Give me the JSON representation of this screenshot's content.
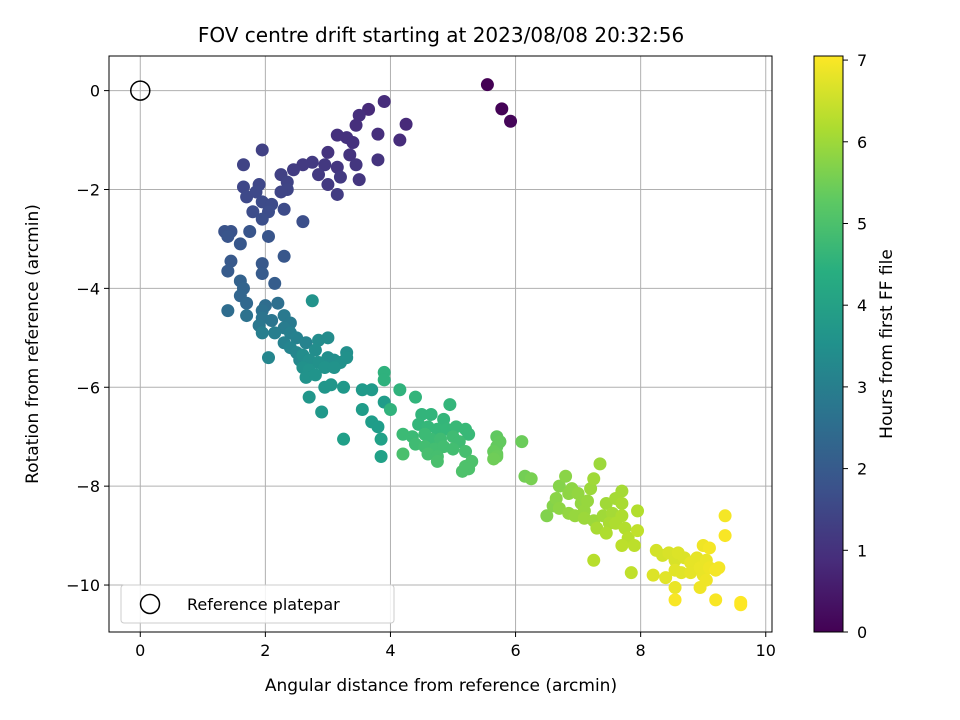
{
  "chart_data": {
    "type": "scatter",
    "title": "FOV centre drift starting at 2023/08/08 20:32:56",
    "xlabel": "Angular distance from reference (arcmin)",
    "ylabel": "Rotation from reference (arcmin)",
    "xlim": [
      -0.5,
      10.1
    ],
    "ylim": [
      -10.95,
      0.7
    ],
    "xticks": [
      "0",
      "2",
      "4",
      "6",
      "8",
      "10"
    ],
    "yticks": [
      "0",
      "−2",
      "−4",
      "−6",
      "−8",
      "−10"
    ],
    "grid": true,
    "legend": {
      "placement": "lower-left",
      "entries": [
        "Reference platepar"
      ]
    },
    "reference_point": {
      "x": 0,
      "y": 0,
      "label": "Reference platepar"
    },
    "colorbar": {
      "label": "Hours from first FF file",
      "range": [
        0,
        7.05
      ],
      "ticks": [
        "0",
        "1",
        "2",
        "3",
        "4",
        "5",
        "6",
        "7"
      ],
      "colormap": "viridis"
    },
    "points": [
      [
        5.55,
        0.12,
        0.0
      ],
      [
        5.78,
        -0.37,
        0.05
      ],
      [
        5.92,
        -0.62,
        0.1
      ],
      [
        3.9,
        -0.22,
        0.9
      ],
      [
        3.65,
        -0.38,
        0.85
      ],
      [
        3.5,
        -0.5,
        0.95
      ],
      [
        3.45,
        -0.7,
        0.95
      ],
      [
        4.25,
        -0.68,
        0.85
      ],
      [
        4.15,
        -1.0,
        0.9
      ],
      [
        3.8,
        -0.88,
        0.95
      ],
      [
        3.3,
        -0.95,
        1.0
      ],
      [
        3.15,
        -0.9,
        1.0
      ],
      [
        3.4,
        -1.05,
        1.0
      ],
      [
        3.0,
        -1.25,
        1.05
      ],
      [
        3.35,
        -1.3,
        1.05
      ],
      [
        3.45,
        -1.5,
        1.1
      ],
      [
        3.8,
        -1.4,
        1.05
      ],
      [
        3.5,
        -1.8,
        1.1
      ],
      [
        3.15,
        -1.55,
        1.1
      ],
      [
        2.95,
        -1.5,
        1.15
      ],
      [
        2.75,
        -1.45,
        1.2
      ],
      [
        2.6,
        -1.5,
        1.2
      ],
      [
        2.45,
        -1.6,
        1.25
      ],
      [
        2.85,
        -1.7,
        1.2
      ],
      [
        3.2,
        -1.75,
        1.2
      ],
      [
        3.0,
        -1.9,
        1.2
      ],
      [
        3.15,
        -2.1,
        1.25
      ],
      [
        1.95,
        -1.2,
        1.35
      ],
      [
        1.65,
        -1.5,
        1.4
      ],
      [
        2.25,
        -1.7,
        1.35
      ],
      [
        2.35,
        -1.85,
        1.4
      ],
      [
        2.35,
        -2.0,
        1.45
      ],
      [
        2.25,
        -2.05,
        1.45
      ],
      [
        1.65,
        -1.95,
        1.5
      ],
      [
        1.9,
        -1.9,
        1.5
      ],
      [
        1.85,
        -2.05,
        1.55
      ],
      [
        1.7,
        -2.15,
        1.55
      ],
      [
        1.95,
        -2.25,
        1.6
      ],
      [
        2.1,
        -2.3,
        1.6
      ],
      [
        2.05,
        -2.45,
        1.65
      ],
      [
        1.8,
        -2.45,
        1.65
      ],
      [
        2.3,
        -2.4,
        1.6
      ],
      [
        2.6,
        -2.65,
        1.7
      ],
      [
        1.95,
        -2.6,
        1.7
      ],
      [
        1.35,
        -2.85,
        1.8
      ],
      [
        1.45,
        -2.85,
        1.8
      ],
      [
        1.4,
        -2.95,
        1.85
      ],
      [
        1.75,
        -2.85,
        1.85
      ],
      [
        2.05,
        -2.95,
        1.85
      ],
      [
        1.6,
        -3.1,
        1.9
      ],
      [
        2.3,
        -3.35,
        1.9
      ],
      [
        1.45,
        -3.45,
        1.95
      ],
      [
        1.95,
        -3.5,
        1.95
      ],
      [
        1.4,
        -3.65,
        2.0
      ],
      [
        1.95,
        -3.7,
        2.0
      ],
      [
        2.15,
        -3.9,
        2.05
      ],
      [
        1.6,
        -3.85,
        2.2
      ],
      [
        1.65,
        -4.0,
        2.25
      ],
      [
        1.6,
        -4.15,
        2.3
      ],
      [
        1.7,
        -4.3,
        2.35
      ],
      [
        2.0,
        -4.35,
        2.5
      ],
      [
        1.4,
        -4.45,
        2.5
      ],
      [
        2.2,
        -4.3,
        2.55
      ],
      [
        1.95,
        -4.45,
        2.6
      ],
      [
        1.7,
        -4.55,
        2.65
      ],
      [
        1.95,
        -4.6,
        2.7
      ],
      [
        2.1,
        -4.65,
        2.75
      ],
      [
        1.9,
        -4.75,
        2.8
      ],
      [
        2.3,
        -4.55,
        2.85
      ],
      [
        2.4,
        -4.7,
        2.9
      ],
      [
        2.3,
        -4.8,
        2.95
      ],
      [
        2.15,
        -4.9,
        3.0
      ],
      [
        1.95,
        -4.9,
        3.0
      ],
      [
        2.4,
        -4.9,
        3.05
      ],
      [
        2.5,
        -5.0,
        3.1
      ],
      [
        2.3,
        -5.1,
        3.1
      ],
      [
        2.65,
        -5.1,
        3.15
      ],
      [
        2.4,
        -5.2,
        3.2
      ],
      [
        2.5,
        -5.3,
        3.25
      ],
      [
        2.05,
        -5.4,
        3.25
      ],
      [
        2.55,
        -5.45,
        3.3
      ],
      [
        2.75,
        -4.25,
        3.6
      ],
      [
        2.85,
        -5.05,
        3.4
      ],
      [
        3.0,
        -5.0,
        3.4
      ],
      [
        2.8,
        -5.25,
        3.45
      ],
      [
        2.6,
        -5.35,
        3.45
      ],
      [
        2.7,
        -5.45,
        3.5
      ],
      [
        3.0,
        -5.4,
        3.5
      ],
      [
        3.1,
        -5.45,
        3.5
      ],
      [
        3.3,
        -5.3,
        3.5
      ],
      [
        3.2,
        -5.5,
        3.55
      ],
      [
        3.3,
        -5.4,
        3.55
      ],
      [
        2.85,
        -5.5,
        3.55
      ],
      [
        2.6,
        -5.6,
        3.55
      ],
      [
        2.7,
        -5.65,
        3.6
      ],
      [
        2.95,
        -5.6,
        3.6
      ],
      [
        3.1,
        -5.6,
        3.6
      ],
      [
        2.65,
        -5.8,
        3.6
      ],
      [
        2.8,
        -5.75,
        3.65
      ],
      [
        2.95,
        -6.0,
        3.7
      ],
      [
        2.7,
        -6.2,
        3.7
      ],
      [
        3.05,
        -5.95,
        3.7
      ],
      [
        3.25,
        -6.0,
        3.75
      ],
      [
        2.9,
        -6.5,
        3.75
      ],
      [
        3.55,
        -6.05,
        3.8
      ],
      [
        3.7,
        -6.05,
        3.8
      ],
      [
        3.55,
        -6.45,
        3.85
      ],
      [
        3.9,
        -6.3,
        3.85
      ],
      [
        3.7,
        -6.7,
        3.9
      ],
      [
        3.8,
        -6.8,
        3.9
      ],
      [
        3.25,
        -7.05,
        3.95
      ],
      [
        3.85,
        -7.05,
        4.0
      ],
      [
        3.85,
        -7.4,
        4.0
      ],
      [
        3.9,
        -5.7,
        4.5
      ],
      [
        3.9,
        -5.85,
        4.5
      ],
      [
        4.15,
        -6.05,
        4.55
      ],
      [
        4.0,
        -6.45,
        4.55
      ],
      [
        4.4,
        -6.2,
        4.6
      ],
      [
        4.5,
        -6.55,
        4.6
      ],
      [
        4.65,
        -6.55,
        4.6
      ],
      [
        4.85,
        -6.65,
        4.65
      ],
      [
        4.95,
        -6.35,
        4.65
      ],
      [
        4.45,
        -6.75,
        4.65
      ],
      [
        4.6,
        -6.8,
        4.7
      ],
      [
        4.75,
        -6.85,
        4.7
      ],
      [
        4.9,
        -6.85,
        4.7
      ],
      [
        5.05,
        -6.8,
        4.75
      ],
      [
        5.2,
        -6.85,
        4.75
      ],
      [
        5.25,
        -6.95,
        4.75
      ],
      [
        4.2,
        -6.95,
        4.8
      ],
      [
        4.35,
        -7.0,
        4.8
      ],
      [
        4.55,
        -6.95,
        4.8
      ],
      [
        4.65,
        -7.05,
        4.8
      ],
      [
        4.8,
        -7.05,
        4.85
      ],
      [
        5.0,
        -7.0,
        4.85
      ],
      [
        5.1,
        -7.1,
        4.85
      ],
      [
        4.4,
        -7.15,
        4.85
      ],
      [
        4.55,
        -7.2,
        4.9
      ],
      [
        4.7,
        -7.25,
        4.9
      ],
      [
        4.85,
        -7.2,
        4.9
      ],
      [
        5.0,
        -7.25,
        4.9
      ],
      [
        5.2,
        -7.3,
        4.95
      ],
      [
        4.6,
        -7.35,
        4.95
      ],
      [
        4.75,
        -7.4,
        4.95
      ],
      [
        4.2,
        -7.35,
        5.0
      ],
      [
        4.75,
        -7.5,
        5.0
      ],
      [
        5.3,
        -7.5,
        5.05
      ],
      [
        5.2,
        -7.6,
        5.05
      ],
      [
        5.25,
        -7.65,
        5.05
      ],
      [
        5.15,
        -7.7,
        5.05
      ],
      [
        5.7,
        -7.0,
        5.3
      ],
      [
        5.75,
        -7.1,
        5.35
      ],
      [
        5.7,
        -7.2,
        5.35
      ],
      [
        5.65,
        -7.3,
        5.4
      ],
      [
        5.7,
        -7.35,
        5.4
      ],
      [
        6.1,
        -7.1,
        5.45
      ],
      [
        5.7,
        -7.4,
        5.45
      ],
      [
        5.65,
        -7.45,
        5.5
      ],
      [
        6.15,
        -7.8,
        5.55
      ],
      [
        6.25,
        -7.85,
        5.6
      ],
      [
        6.5,
        -8.6,
        5.7
      ],
      [
        6.6,
        -8.4,
        5.75
      ],
      [
        6.65,
        -8.25,
        5.8
      ],
      [
        6.7,
        -8.0,
        5.75
      ],
      [
        6.8,
        -7.8,
        5.8
      ],
      [
        6.85,
        -8.15,
        5.85
      ],
      [
        6.9,
        -8.05,
        5.85
      ],
      [
        6.7,
        -8.45,
        5.85
      ],
      [
        6.85,
        -8.55,
        5.9
      ],
      [
        7.0,
        -8.15,
        5.9
      ],
      [
        7.05,
        -8.35,
        5.9
      ],
      [
        6.95,
        -8.6,
        5.95
      ],
      [
        7.1,
        -8.5,
        5.95
      ],
      [
        7.15,
        -8.3,
        5.95
      ],
      [
        7.2,
        -8.05,
        6.0
      ],
      [
        7.1,
        -8.65,
        6.0
      ],
      [
        7.25,
        -8.7,
        6.0
      ],
      [
        7.25,
        -7.85,
        6.05
      ],
      [
        7.4,
        -8.6,
        6.05
      ],
      [
        7.45,
        -8.35,
        6.05
      ],
      [
        7.55,
        -8.55,
        6.1
      ],
      [
        7.6,
        -8.25,
        6.1
      ],
      [
        7.7,
        -8.1,
        6.1
      ],
      [
        7.7,
        -8.35,
        6.15
      ],
      [
        7.5,
        -8.75,
        6.15
      ],
      [
        7.3,
        -8.85,
        6.15
      ],
      [
        7.45,
        -8.95,
        6.2
      ],
      [
        7.35,
        -7.55,
        6.0
      ],
      [
        7.6,
        -8.75,
        6.2
      ],
      [
        7.7,
        -8.6,
        6.2
      ],
      [
        7.75,
        -8.85,
        6.25
      ],
      [
        7.95,
        -8.5,
        6.25
      ],
      [
        7.25,
        -9.5,
        6.3
      ],
      [
        7.8,
        -9.05,
        6.3
      ],
      [
        7.7,
        -9.2,
        6.35
      ],
      [
        7.9,
        -9.2,
        6.35
      ],
      [
        7.95,
        -8.9,
        6.4
      ],
      [
        7.85,
        -9.75,
        6.4
      ],
      [
        8.25,
        -9.3,
        6.6
      ],
      [
        8.35,
        -9.4,
        6.6
      ],
      [
        8.45,
        -9.35,
        6.65
      ],
      [
        8.55,
        -9.5,
        6.65
      ],
      [
        8.6,
        -9.35,
        6.7
      ],
      [
        8.7,
        -9.45,
        6.7
      ],
      [
        8.2,
        -9.8,
        6.7
      ],
      [
        8.4,
        -9.85,
        6.75
      ],
      [
        8.55,
        -9.7,
        6.75
      ],
      [
        8.65,
        -9.75,
        6.75
      ],
      [
        8.8,
        -9.55,
        6.8
      ],
      [
        8.9,
        -9.45,
        6.8
      ],
      [
        8.8,
        -9.75,
        6.8
      ],
      [
        8.55,
        -10.05,
        6.85
      ],
      [
        8.95,
        -9.65,
        6.85
      ],
      [
        9.05,
        -9.5,
        6.85
      ],
      [
        9.0,
        -9.8,
        6.85
      ],
      [
        9.1,
        -9.65,
        6.9
      ],
      [
        9.05,
        -9.9,
        6.9
      ],
      [
        8.95,
        -10.05,
        6.9
      ],
      [
        9.0,
        -9.2,
        6.9
      ],
      [
        9.1,
        -9.25,
        6.95
      ],
      [
        9.25,
        -9.65,
        6.95
      ],
      [
        9.2,
        -9.7,
        6.95
      ],
      [
        9.35,
        -8.6,
        6.95
      ],
      [
        9.35,
        -9.0,
        7.0
      ],
      [
        8.55,
        -10.3,
        7.0
      ],
      [
        9.2,
        -10.3,
        7.0
      ],
      [
        9.6,
        -10.35,
        7.05
      ],
      [
        9.6,
        -10.4,
        7.05
      ]
    ]
  }
}
